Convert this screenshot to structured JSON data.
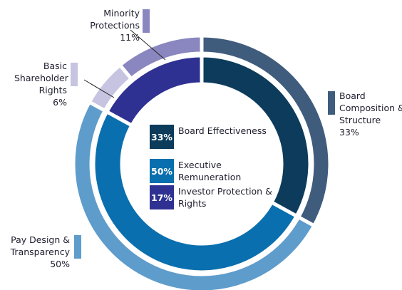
{
  "chart_data": {
    "type": "nested-donut",
    "outer": {
      "categories": [
        "Board Composition & Structure",
        "Pay Design & Transparency",
        "Basic Shareholder Rights",
        "Minority Protections"
      ],
      "values": [
        33,
        50,
        6,
        11
      ],
      "value_labels": [
        "33%",
        "50%",
        "6%",
        "11%"
      ],
      "colors": [
        "#3f5c7d",
        "#5e9ccb",
        "#c6c4e1",
        "#8a86c0"
      ]
    },
    "inner": {
      "categories": [
        "Board Effectiveness",
        "Executive Remuneration",
        "Investor Protection & Rights"
      ],
      "values": [
        33,
        50,
        17
      ],
      "value_labels": [
        "33%",
        "50%",
        "17%"
      ],
      "colors": [
        "#0d3b5b",
        "#0a6fae",
        "#2e3192"
      ]
    }
  }
}
